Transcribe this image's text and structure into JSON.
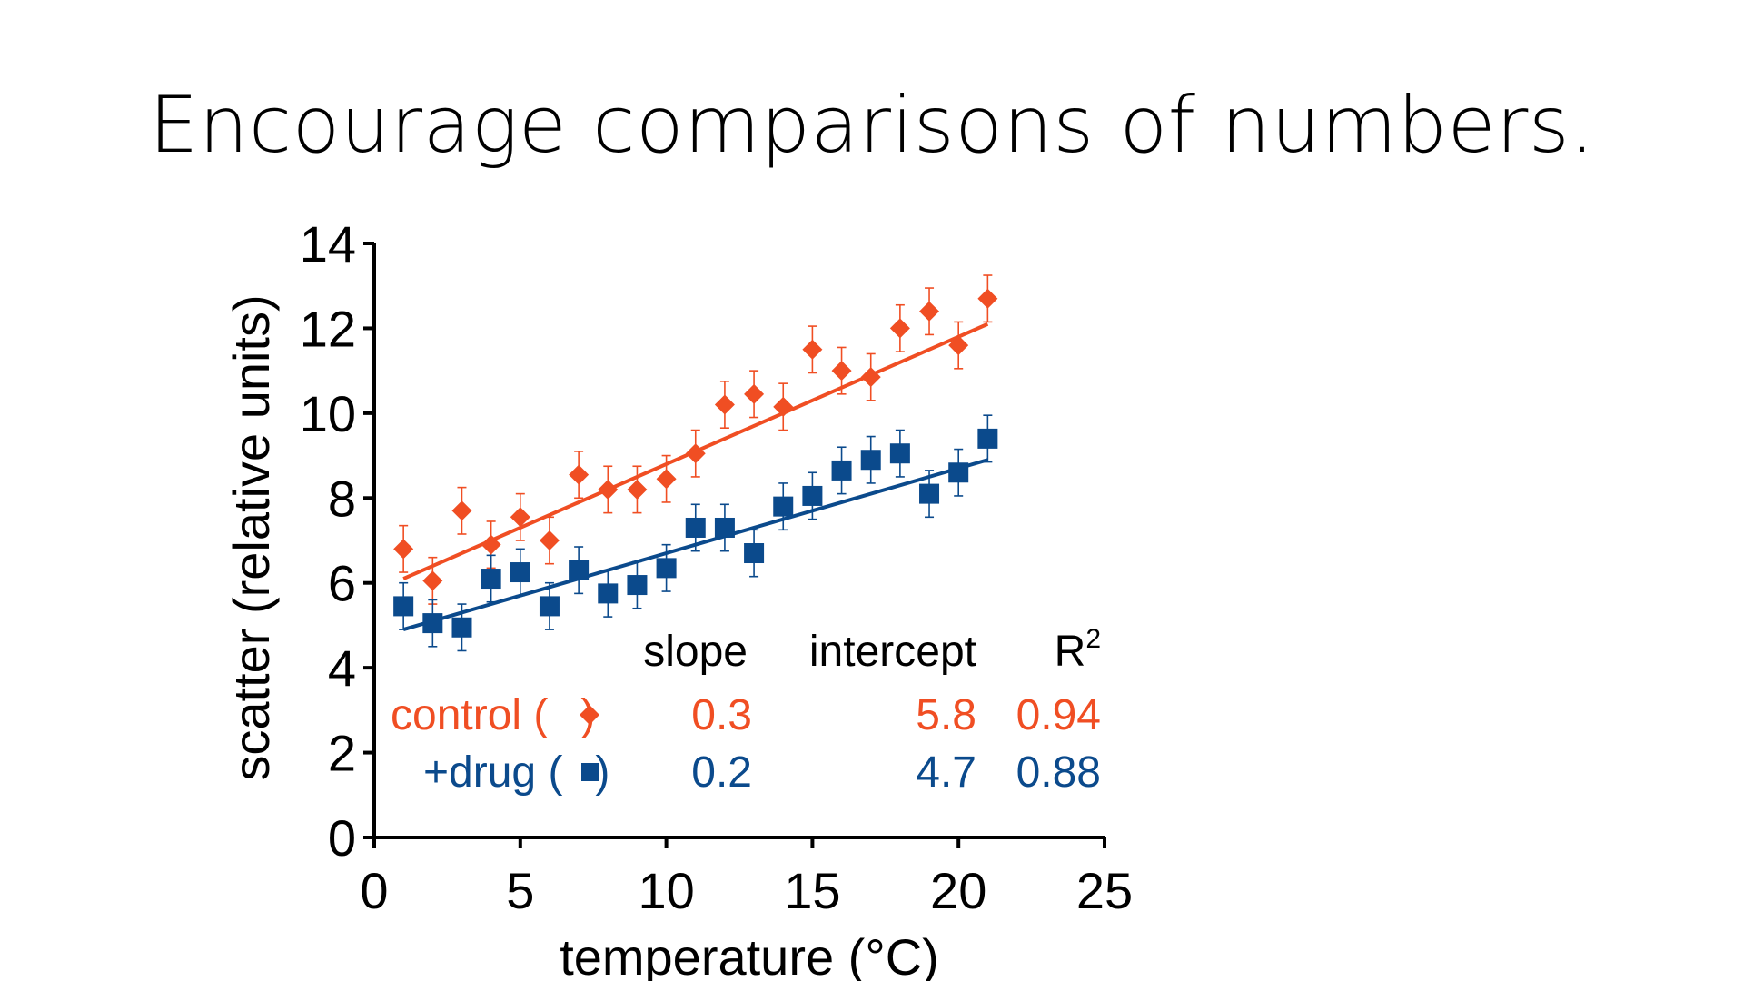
{
  "slide": {
    "title": "Encourage comparisons of numbers."
  },
  "chart_data": {
    "type": "scatter",
    "xlabel": "temperature (°C)",
    "ylabel": "scatter (relative units)",
    "xlim": [
      0,
      25
    ],
    "ylim": [
      0,
      14
    ],
    "xticks": [
      0,
      5,
      10,
      15,
      20,
      25
    ],
    "yticks": [
      0,
      2,
      4,
      6,
      8,
      10,
      12,
      14
    ],
    "error_bar": 0.55,
    "series": [
      {
        "name": "control",
        "marker": "diamond",
        "color": "#f04e23",
        "x": [
          1,
          2,
          3,
          4,
          5,
          6,
          7,
          8,
          9,
          10,
          11,
          12,
          13,
          14,
          15,
          16,
          17,
          18,
          19,
          20,
          21
        ],
        "y": [
          6.8,
          6.05,
          7.7,
          6.9,
          7.55,
          7.0,
          8.55,
          8.2,
          8.2,
          8.45,
          9.05,
          10.2,
          10.45,
          10.15,
          11.5,
          11.0,
          10.85,
          12.0,
          12.4,
          11.6,
          12.7
        ],
        "fit": {
          "slope": 0.3,
          "intercept": 5.8,
          "r2": 0.94,
          "x_range": [
            1,
            21
          ]
        }
      },
      {
        "name": "+drug",
        "marker": "square",
        "color": "#0b4a8c",
        "x": [
          1,
          2,
          3,
          4,
          5,
          6,
          7,
          8,
          9,
          10,
          11,
          12,
          13,
          14,
          15,
          16,
          17,
          18,
          19,
          20,
          21
        ],
        "y": [
          5.45,
          5.05,
          4.95,
          6.1,
          6.25,
          5.45,
          6.3,
          5.75,
          5.95,
          6.35,
          7.3,
          7.3,
          6.7,
          7.8,
          8.05,
          8.65,
          8.9,
          9.05,
          8.1,
          8.6,
          9.4
        ],
        "fit": {
          "slope": 0.2,
          "intercept": 4.7,
          "r2": 0.88,
          "x_range": [
            1,
            21
          ]
        }
      }
    ],
    "stats_table": {
      "headers": {
        "slope": "slope",
        "intercept": "intercept",
        "r2_base": "R",
        "r2_sup": "2"
      },
      "rows": [
        {
          "label": "control (",
          "marker": "diamond",
          "close": ")",
          "slope": "0.3",
          "intercept": "5.8",
          "r2": "0.94",
          "color": "#f04e23"
        },
        {
          "label": "+drug (",
          "marker": "square",
          "close": ")",
          "slope": "0.2",
          "intercept": "4.7",
          "r2": "0.88",
          "color": "#0b4a8c"
        }
      ]
    }
  }
}
